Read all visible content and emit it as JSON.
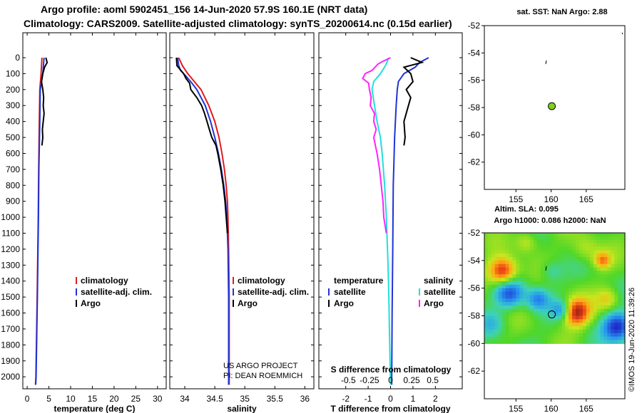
{
  "title_line1": "Argo profile: aoml 5902451_156 14-Jun-2020 57.9S 160.1E (NRT data)",
  "title_line2": "Climatology: CARS2009. Satellite-adjusted climatology: synTS_20200614.nc (0.15d earlier)",
  "colors": {
    "climatology": "#e31a1c",
    "satellite_adj": "#1f33d6",
    "argo": "#000000",
    "salinity_sat": "#22dede",
    "salinity_argo": "#ff22ff",
    "marker": "#7fd11a"
  },
  "chart_data": [
    {
      "type": "line",
      "name": "temperature",
      "xlabel": "temperature (deg C)",
      "ylabel": "",
      "xlim": [
        -1,
        32
      ],
      "ylim": [
        2075,
        0
      ],
      "xticks": [
        0,
        5,
        10,
        15,
        20,
        25,
        30
      ],
      "yticks": [
        0,
        100,
        200,
        300,
        400,
        500,
        600,
        700,
        800,
        900,
        1000,
        1100,
        1200,
        1300,
        1400,
        1500,
        1600,
        1700,
        1800,
        1900,
        2000
      ],
      "legend": [
        "climatology",
        "satellite-adj. clim.",
        "Argo"
      ],
      "series": [
        {
          "name": "climatology",
          "depth": [
            0,
            100,
            200,
            400,
            700,
            1000,
            1500,
            2000,
            2050
          ],
          "values": [
            3.4,
            3.2,
            2.9,
            2.8,
            2.65,
            2.55,
            2.3,
            2.0,
            1.9
          ]
        },
        {
          "name": "satellite-adj. clim.",
          "depth": [
            0,
            100,
            200,
            400,
            700,
            1000,
            1500,
            2000,
            2050
          ],
          "values": [
            3.9,
            3.6,
            3.0,
            2.9,
            2.7,
            2.6,
            2.35,
            2.05,
            1.95
          ]
        },
        {
          "name": "Argo",
          "depth": [
            0,
            30,
            60,
            100,
            150,
            200,
            250,
            300,
            350,
            400,
            450,
            500,
            550
          ],
          "values": [
            4.3,
            4.6,
            4.0,
            3.6,
            3.3,
            3.6,
            3.8,
            3.7,
            3.9,
            3.7,
            3.5,
            3.6,
            3.4
          ]
        }
      ]
    },
    {
      "type": "line",
      "name": "salinity",
      "xlabel": "salinity",
      "xlim": [
        33.75,
        36.15
      ],
      "ylim": [
        2075,
        0
      ],
      "xticks": [
        34,
        34.5,
        35,
        35.5,
        36
      ],
      "legend": [
        "climatology",
        "satellite-adj. clim.",
        "Argo"
      ],
      "annotations": [
        "US ARGO PROJECT",
        "PI: DEAN ROEMMICH"
      ],
      "series": [
        {
          "name": "climatology",
          "depth": [
            0,
            50,
            100,
            150,
            200,
            300,
            400,
            500,
            600,
            700,
            800,
            900,
            1000,
            1200,
            1500,
            2050
          ],
          "values": [
            33.9,
            33.96,
            34.05,
            34.16,
            34.27,
            34.4,
            34.5,
            34.57,
            34.62,
            34.66,
            34.69,
            34.71,
            34.72,
            34.73,
            34.74,
            34.74
          ]
        },
        {
          "name": "satellite-adj. clim.",
          "depth": [
            0,
            50,
            80,
            120,
            160,
            200,
            300,
            400,
            500,
            600,
            700,
            800,
            900,
            1000,
            1200,
            1500,
            2050
          ],
          "values": [
            33.88,
            33.9,
            33.93,
            34.03,
            34.12,
            34.2,
            34.34,
            34.43,
            34.5,
            34.56,
            34.61,
            34.65,
            34.68,
            34.7,
            34.72,
            34.73,
            34.73
          ]
        },
        {
          "name": "Argo",
          "depth": [
            0,
            50,
            100,
            130,
            160,
            200,
            250,
            300,
            350,
            400,
            450,
            500,
            550,
            600,
            700,
            800,
            900,
            1000,
            1100
          ],
          "values": [
            33.86,
            33.87,
            33.98,
            34.02,
            34.08,
            34.1,
            34.2,
            34.28,
            34.33,
            34.37,
            34.41,
            34.45,
            34.52,
            34.55,
            34.6,
            34.64,
            34.67,
            34.69,
            34.71
          ]
        }
      ]
    },
    {
      "type": "line",
      "name": "difference from climatology",
      "xlabel": "T difference from climatology",
      "x2label": "S difference from climatology",
      "xlim": [
        -3.2,
        3.2
      ],
      "ylim": [
        2075,
        0
      ],
      "xticks": [
        -2,
        -1,
        0,
        1,
        2
      ],
      "x2ticks": [
        -0.5,
        -0.25,
        0,
        0.25,
        0.5
      ],
      "x2_label_text": [
        "-0.5",
        "-0.25",
        "0",
        "0.25",
        "0.5"
      ],
      "legend_t": [
        "temperature",
        "satellite",
        "Argo"
      ],
      "legend_s": [
        "salinity",
        "satellite",
        "Argo"
      ],
      "series": [
        {
          "name": "T satellite",
          "depth": [
            0,
            30,
            60,
            100,
            150,
            200,
            300,
            500,
            800,
            1200,
            1600,
            2050
          ],
          "values": [
            1.7,
            1.3,
            1.1,
            0.6,
            0.35,
            0.3,
            0.25,
            0.18,
            0.12,
            0.1,
            0.07,
            0.05
          ]
        },
        {
          "name": "T Argo",
          "depth": [
            0,
            30,
            60,
            100,
            150,
            200,
            250,
            300,
            400,
            500,
            550
          ],
          "values": [
            0.9,
            1.4,
            0.6,
            0.9,
            1.0,
            0.7,
            0.9,
            0.8,
            0.6,
            0.65,
            0.6
          ]
        },
        {
          "name": "S satellite",
          "depth": [
            0,
            50,
            100,
            150,
            200,
            300,
            400,
            500,
            600,
            800,
            1000,
            1300,
            1500,
            1800,
            2050
          ],
          "values": [
            -0.02,
            -0.06,
            -0.12,
            -0.2,
            -0.22,
            -0.19,
            -0.16,
            -0.12,
            -0.1,
            -0.07,
            -0.05,
            -0.03,
            -0.02,
            -0.01,
            0.0
          ]
        },
        {
          "name": "S Argo",
          "depth": [
            0,
            20,
            40,
            80,
            100,
            130,
            160,
            200,
            250,
            300,
            350,
            400,
            450,
            500,
            600,
            700,
            800,
            900,
            1000,
            1100
          ],
          "values": [
            0.0,
            -0.08,
            -0.15,
            -0.22,
            -0.3,
            -0.33,
            -0.26,
            -0.25,
            -0.23,
            -0.24,
            -0.19,
            -0.2,
            -0.17,
            -0.2,
            -0.16,
            -0.13,
            -0.11,
            -0.09,
            -0.08,
            -0.05
          ]
        }
      ]
    },
    {
      "type": "scatter",
      "name": "sat SST map",
      "title": "sat. SST: NaN Argo: 2.88",
      "xlim": [
        150.5,
        170.5
      ],
      "ylim": [
        -64,
        -52
      ],
      "xticks": [
        155,
        160,
        165
      ],
      "yticks": [
        -52,
        -54,
        -56,
        -58,
        -60,
        -62
      ],
      "profile_marker": [
        160.1,
        -57.9
      ]
    },
    {
      "type": "heatmap",
      "name": "altimetry map",
      "title_line1": "Altim. SLA: 0.095",
      "title_line2": "Argo h1000: 0.086 h2000: NaN",
      "xlim": [
        150.5,
        170.5
      ],
      "ylim": [
        -64,
        -52
      ],
      "xticks": [
        155,
        160,
        165
      ],
      "yticks": [
        -52,
        -54,
        -56,
        -58,
        -60,
        -62
      ],
      "profile_marker": [
        160.1,
        -57.9
      ],
      "data_extent_lat": [
        -60,
        -52
      ]
    }
  ],
  "credit": "©IMOS 19-Jun-2020 11:39:26"
}
